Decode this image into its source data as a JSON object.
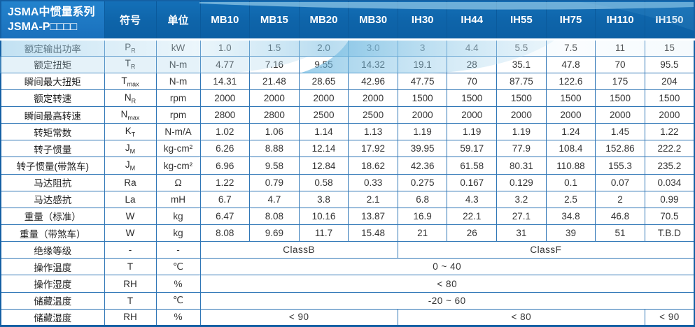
{
  "table": {
    "header": {
      "title1": "JSMA中惯量系列",
      "title2": "JSMA-P□□□□",
      "symbol_col": "符号",
      "unit_col": "单位",
      "models": [
        "MB10",
        "MB15",
        "MB20",
        "MB30",
        "IH30",
        "IH44",
        "IH55",
        "IH75",
        "IH110",
        "IH150"
      ]
    },
    "rows": [
      {
        "label": "额定输出功率",
        "sym": "P",
        "sub": "R",
        "unit": "kW",
        "values": [
          "1.0",
          "1.5",
          "2.0",
          "3.0",
          "3",
          "4.4",
          "5.5",
          "7.5",
          "11",
          "15"
        ]
      },
      {
        "label": "额定扭矩",
        "sym": "T",
        "sub": "R",
        "unit": "N-m",
        "values": [
          "4.77",
          "7.16",
          "9.55",
          "14.32",
          "19.1",
          "28",
          "35.1",
          "47.8",
          "70",
          "95.5"
        ]
      },
      {
        "label": "瞬间最大扭矩",
        "sym": "T",
        "sub": "max",
        "unit": "N-m",
        "values": [
          "14.31",
          "21.48",
          "28.65",
          "42.96",
          "47.75",
          "70",
          "87.75",
          "122.6",
          "175",
          "204"
        ]
      },
      {
        "label": "额定转速",
        "sym": "N",
        "sub": "R",
        "unit": "rpm",
        "values": [
          "2000",
          "2000",
          "2000",
          "2000",
          "1500",
          "1500",
          "1500",
          "1500",
          "1500",
          "1500"
        ]
      },
      {
        "label": "瞬间最高转速",
        "sym": "N",
        "sub": "max",
        "unit": "rpm",
        "values": [
          "2800",
          "2800",
          "2500",
          "2500",
          "2000",
          "2000",
          "2000",
          "2000",
          "2000",
          "2000"
        ]
      },
      {
        "label": "转矩常数",
        "sym": "K",
        "sub": "T",
        "unit": "N-m/A",
        "values": [
          "1.02",
          "1.06",
          "1.14",
          "1.13",
          "1.19",
          "1.19",
          "1.19",
          "1.24",
          "1.45",
          "1.22"
        ]
      },
      {
        "label": "转子惯量",
        "sym": "J",
        "sub": "M",
        "unit": "kg-cm²",
        "values": [
          "6.26",
          "8.88",
          "12.14",
          "17.92",
          "39.95",
          "59.17",
          "77.9",
          "108.4",
          "152.86",
          "222.2"
        ]
      },
      {
        "label": "转子惯量(带煞车)",
        "sym": "J",
        "sub": "M",
        "unit": "kg-cm²",
        "values": [
          "6.96",
          "9.58",
          "12.84",
          "18.62",
          "42.36",
          "61.58",
          "80.31",
          "110.88",
          "155.3",
          "235.2"
        ]
      },
      {
        "label": "马达阻抗",
        "sym": "Ra",
        "sub": "",
        "unit": "Ω",
        "values": [
          "1.22",
          "0.79",
          "0.58",
          "0.33",
          "0.275",
          "0.167",
          "0.129",
          "0.1",
          "0.07",
          "0.034"
        ]
      },
      {
        "label": "马达感抗",
        "sym": "La",
        "sub": "",
        "unit": "mH",
        "values": [
          "6.7",
          "4.7",
          "3.8",
          "2.1",
          "6.8",
          "4.3",
          "3.2",
          "2.5",
          "2",
          "0.99"
        ]
      },
      {
        "label": "重量（标准）",
        "sym": "W",
        "sub": "",
        "unit": "kg",
        "values": [
          "6.47",
          "8.08",
          "10.16",
          "13.87",
          "16.9",
          "22.1",
          "27.1",
          "34.8",
          "46.8",
          "70.5"
        ]
      },
      {
        "label": "重量（带煞车）",
        "sym": "W",
        "sub": "",
        "unit": "kg",
        "values": [
          "8.08",
          "9.69",
          "11.7",
          "15.48",
          "21",
          "26",
          "31",
          "39",
          "51",
          "T.B.D"
        ]
      }
    ],
    "merged": [
      {
        "label": "绝缘等级",
        "sym": "-",
        "unit": "-",
        "cells": [
          {
            "text": "ClassB",
            "span": 4
          },
          {
            "text": "ClassF",
            "span": 6
          }
        ]
      },
      {
        "label": "操作温度",
        "sym": "T",
        "unit": "℃",
        "cells": [
          {
            "text": "0 ~ 40",
            "span": 10
          }
        ]
      },
      {
        "label": "操作湿度",
        "sym": "RH",
        "unit": "%",
        "cells": [
          {
            "text": "< 80",
            "span": 10
          }
        ]
      },
      {
        "label": "储藏温度",
        "sym": "T",
        "unit": "℃",
        "cells": [
          {
            "text": "-20 ~ 60",
            "span": 10
          }
        ]
      },
      {
        "label": "储藏湿度",
        "sym": "RH",
        "unit": "%",
        "cells": [
          {
            "text": "< 90",
            "span": 4
          },
          {
            "text": "< 80",
            "span": 5
          },
          {
            "text": "< 90",
            "span": 1
          }
        ]
      }
    ]
  },
  "colors": {
    "header_blue": "#0e64a9",
    "header_left_blue": "#1d76c2",
    "border_blue": "#2f76b6",
    "outer_border_blue": "#1460a4",
    "wave_light_blue": "#7dc0e4",
    "header_text": "#ffffff",
    "body_text": "#333333"
  }
}
